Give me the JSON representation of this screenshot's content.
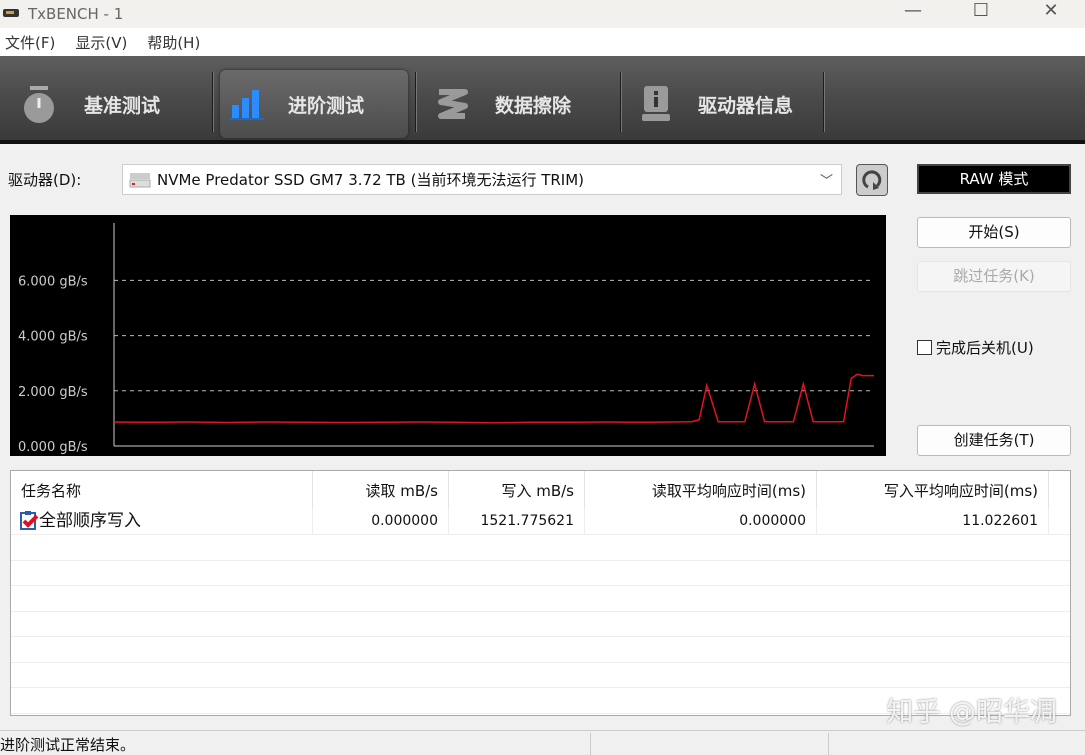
{
  "window": {
    "title": "TxBENCH - 1"
  },
  "menu": [
    {
      "label": "文件(F)"
    },
    {
      "label": "显示(V)"
    },
    {
      "label": "帮助(H)"
    }
  ],
  "toolbar": [
    {
      "label": "基准测试",
      "icon": "stopwatch-icon"
    },
    {
      "label": "进阶测试",
      "icon": "bar-chart-icon",
      "active": true
    },
    {
      "label": "数据擦除",
      "icon": "eraser-icon"
    },
    {
      "label": "驱动器信息",
      "icon": "drive-info-icon"
    }
  ],
  "drive": {
    "label": "驱动器(D):",
    "selected": "NVMe Predator SSD GM7  3.72 TB (当前环境无法运行 TRIM)"
  },
  "side": {
    "raw_mode": "RAW 模式",
    "start": "开始(S)",
    "skip": "跳过任务(K)",
    "shutdown": "完成后关机(U)",
    "shutdown_checked": false,
    "create": "创建任务(T)"
  },
  "colors": {
    "series": "#e0141e",
    "chart_bg": "#000000",
    "accent": "#2a8cff"
  },
  "chart_data": {
    "type": "line",
    "y_tick_labels": [
      "0.000 gB/s",
      "2.000 gB/s",
      "4.000 gB/s",
      "6.000 gB/s"
    ],
    "y_ticks": [
      0,
      2,
      4,
      6
    ],
    "ylim": [
      0,
      8.1
    ],
    "xlim": [
      0,
      100
    ],
    "grid": "dashed horizontal",
    "series": [
      {
        "color": "#e0141e",
        "points": [
          [
            0,
            0.87
          ],
          [
            5,
            0.86
          ],
          [
            10,
            0.87
          ],
          [
            15,
            0.85
          ],
          [
            20,
            0.87
          ],
          [
            25,
            0.86
          ],
          [
            30,
            0.85
          ],
          [
            35,
            0.86
          ],
          [
            40,
            0.87
          ],
          [
            45,
            0.86
          ],
          [
            50,
            0.84
          ],
          [
            55,
            0.86
          ],
          [
            60,
            0.86
          ],
          [
            65,
            0.87
          ],
          [
            70,
            0.86
          ],
          [
            76,
            0.88
          ],
          [
            77,
            0.95
          ],
          [
            78,
            2.2
          ],
          [
            79.5,
            0.88
          ],
          [
            83,
            0.88
          ],
          [
            84.3,
            2.25
          ],
          [
            85.6,
            0.88
          ],
          [
            89.4,
            0.88
          ],
          [
            90.7,
            2.25
          ],
          [
            92,
            0.88
          ],
          [
            96,
            0.88
          ],
          [
            97,
            2.45
          ],
          [
            97.8,
            2.6
          ],
          [
            98.5,
            2.55
          ],
          [
            100,
            2.55
          ]
        ]
      }
    ]
  },
  "table": {
    "columns": [
      "任务名称",
      "读取 mB/s",
      "写入 mB/s",
      "读取平均响应时间(ms)",
      "写入平均响应时间(ms)"
    ],
    "rows": [
      [
        "全部顺序写入",
        "0.000000",
        "1521.775621",
        "0.000000",
        "11.022601"
      ]
    ]
  },
  "status": {
    "text": "进阶测试正常结束。"
  },
  "watermark": "知乎 @昭华凋"
}
